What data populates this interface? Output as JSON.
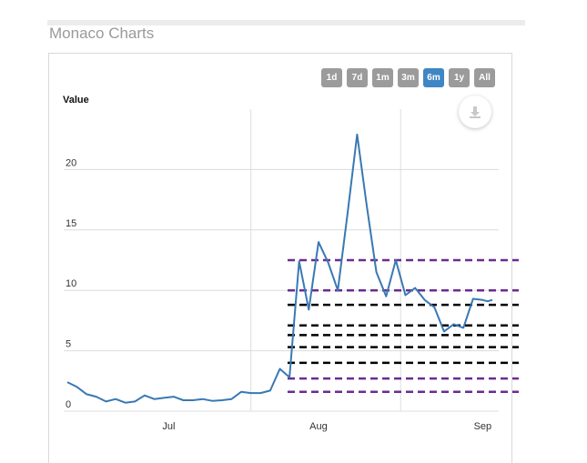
{
  "page": {
    "title": "Monaco Charts"
  },
  "toolbar": {
    "range_buttons": [
      {
        "label": "1d",
        "active": false
      },
      {
        "label": "7d",
        "active": false
      },
      {
        "label": "1m",
        "active": false
      },
      {
        "label": "3m",
        "active": false
      },
      {
        "label": "6m",
        "active": true
      },
      {
        "label": "1y",
        "active": false
      },
      {
        "label": "All",
        "active": false
      }
    ],
    "download_icon": "download-icon"
  },
  "colors": {
    "line": "#3a78b4",
    "active_button": "#3f86c4",
    "button": "#9b9b9b",
    "level_purple": "#6a2c91",
    "level_black": "#000000"
  },
  "chart_data": {
    "type": "line",
    "ylabel": "Value",
    "ylim": [
      0,
      25
    ],
    "y_ticks": [
      "0",
      "5",
      "10",
      "15",
      "20"
    ],
    "x_ticks": [
      "Jul",
      "Aug",
      "Sep"
    ],
    "grid": true,
    "series": [
      {
        "x": [
          "2021-06-10",
          "2021-06-12",
          "2021-06-14",
          "2021-06-16",
          "2021-06-18",
          "2021-06-20",
          "2021-06-22",
          "2021-06-24",
          "2021-06-26",
          "2021-06-28",
          "2021-06-30",
          "2021-07-02",
          "2021-07-04",
          "2021-07-06",
          "2021-07-08",
          "2021-07-10",
          "2021-07-12",
          "2021-07-14",
          "2021-07-16",
          "2021-07-18",
          "2021-07-20",
          "2021-07-22",
          "2021-07-24",
          "2021-07-26",
          "2021-07-28",
          "2021-07-30",
          "2021-08-01",
          "2021-08-03",
          "2021-08-05",
          "2021-08-07",
          "2021-08-09",
          "2021-08-11",
          "2021-08-13",
          "2021-08-15",
          "2021-08-17",
          "2021-08-19",
          "2021-08-21",
          "2021-08-23",
          "2021-08-25",
          "2021-08-27",
          "2021-08-29",
          "2021-08-31",
          "2021-09-02",
          "2021-09-04",
          "2021-09-05",
          "2021-09-06"
        ],
        "y": [
          2.4,
          2.0,
          1.4,
          1.2,
          0.8,
          1.0,
          0.7,
          0.8,
          1.3,
          1.0,
          1.1,
          1.2,
          0.9,
          0.9,
          1.0,
          0.85,
          0.9,
          1.0,
          1.6,
          1.5,
          1.5,
          1.7,
          3.5,
          2.8,
          12.4,
          8.4,
          14.0,
          12.3,
          10.0,
          16.3,
          22.9,
          17.0,
          11.5,
          9.5,
          12.5,
          9.6,
          10.2,
          9.2,
          8.6,
          6.6,
          7.2,
          6.9,
          9.3,
          9.2,
          9.1,
          9.2
        ]
      }
    ],
    "levels": [
      {
        "y": 12.5,
        "color": "purple"
      },
      {
        "y": 10.0,
        "color": "purple"
      },
      {
        "y": 8.8,
        "color": "black"
      },
      {
        "y": 7.1,
        "color": "black"
      },
      {
        "y": 6.3,
        "color": "black"
      },
      {
        "y": 5.3,
        "color": "black"
      },
      {
        "y": 4.0,
        "color": "black"
      },
      {
        "y": 2.7,
        "color": "purple"
      },
      {
        "y": 1.6,
        "color": "purple"
      }
    ]
  }
}
